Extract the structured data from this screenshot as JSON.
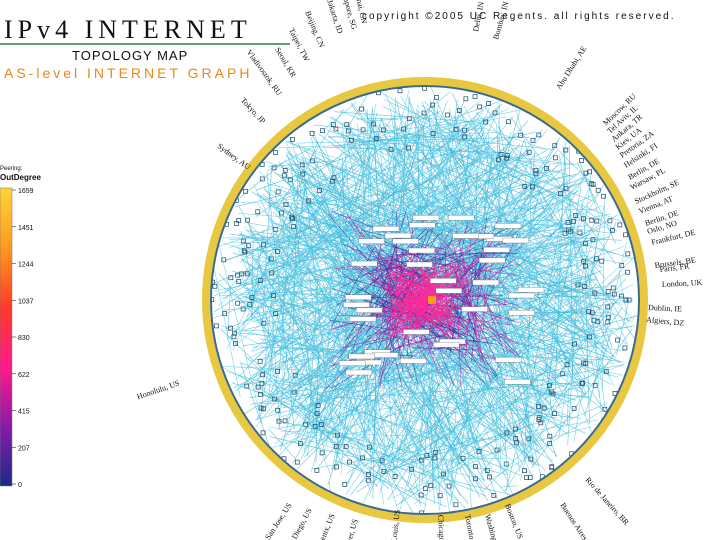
{
  "header": {
    "title": "IPv4 INTERNET",
    "subtitle": "TOPOLOGY MAP",
    "graph": "AS-level INTERNET GRAPH",
    "copyright": "copyright ©2005 UC Regents. all rights reserved."
  },
  "legend": {
    "caption": "Peering:",
    "title": "OutDegree",
    "ticks": [
      "1659",
      "1451",
      "1244",
      "1037",
      "830",
      "622",
      "415",
      "207",
      "0"
    ]
  },
  "cities": [
    "Jakarta, ID",
    "Singapore, SG",
    "Shanghai, CN",
    "Beijing, CN",
    "Taipei, TW",
    "Seoul, KR",
    "Vladivostok, RU",
    "Tokyo, JP",
    "Sydney, AU",
    "Honolulu, US",
    "San Jose, US",
    "San Diego, US",
    "Phoenix, US",
    "Denver, US",
    "St. Louis, US",
    "Chicago, US",
    "Toronto, CA",
    "Washington, DC",
    "Boston, US",
    "Buenos Aires, AR",
    "Rio de Janeiro, BR",
    "Algiers, DZ",
    "Dublin, IE",
    "London, UK",
    "Paris, FR",
    "Brussels, BE",
    "Frankfurt, DE",
    "Oslo, NO",
    "Berlin, DE",
    "Vienna, AT",
    "Stockholm, SE",
    "Warsaw, PL",
    "Berlin, DE",
    "Helsinki, FI",
    "Pretoria, ZA",
    "Kiev, UA",
    "Ankara, TR",
    "Tel Aviv, IL",
    "Moscow, RU",
    "Abu Dhabi, AE",
    "Bombay, IN",
    "Delhi, IN"
  ]
}
